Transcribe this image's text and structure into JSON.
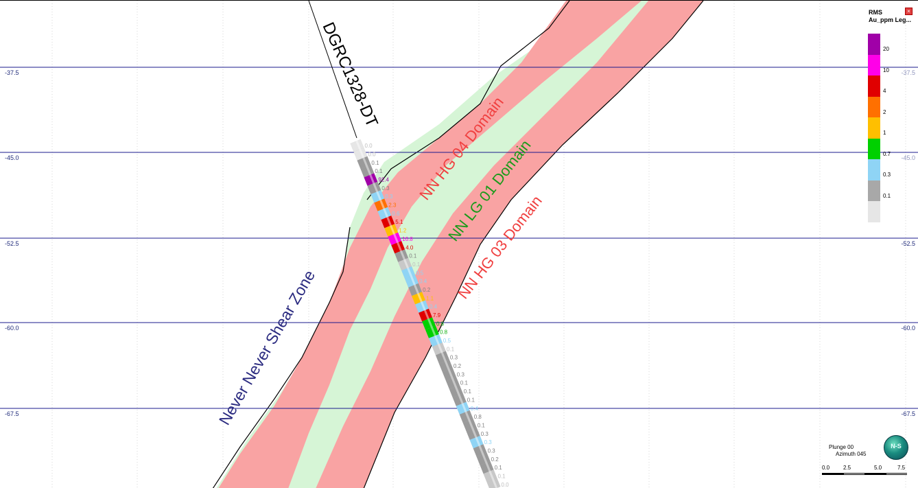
{
  "elevation_labels": {
    "left": [
      "-37.5",
      "-45.0",
      "-52.5",
      "-60.0",
      "-67.5"
    ],
    "right": [
      "-37.5",
      "-45.0",
      "-52.5",
      "-60.0",
      "-67.5"
    ]
  },
  "annotations": {
    "drillhole": "DGRC1328-DT",
    "shear_zone": "Never Never Shear Zone",
    "hg04": "NN HG 04 Domain",
    "lg01": "NN LG 01 Domain",
    "hg03": "NN HG 03 Domain"
  },
  "assays": [
    {
      "v": "0.0",
      "c": "#e6e6e6"
    },
    {
      "v": "0.0",
      "c": "#e6e6e6"
    },
    {
      "v": "0.1",
      "c": "#9a9a9a"
    },
    {
      "v": "0.1",
      "c": "#9a9a9a"
    },
    {
      "v": "92.4",
      "c": "#a000a8"
    },
    {
      "v": "0.3",
      "c": "#9a9a9a"
    },
    {
      "v": "0.3",
      "c": "#8fd4f5"
    },
    {
      "v": "2.3",
      "c": "#ff7000"
    },
    {
      "v": "0.6",
      "c": "#8fd4f5"
    },
    {
      "v": "5.1",
      "c": "#e00000"
    },
    {
      "v": "1.2",
      "c": "#ffbf00"
    },
    {
      "v": "16.8",
      "c": "#ff00e8"
    },
    {
      "v": "4.0",
      "c": "#e00000"
    },
    {
      "v": "0.1",
      "c": "#9a9a9a"
    },
    {
      "v": "0.1",
      "c": "#c8c8c8"
    },
    {
      "v": "0.5",
      "c": "#8fd4f5"
    },
    {
      "v": "0.4",
      "c": "#8fd4f5"
    },
    {
      "v": "0.2",
      "c": "#9a9a9a"
    },
    {
      "v": "1.1",
      "c": "#ffbf00"
    },
    {
      "v": "0.4",
      "c": "#8fd4f5"
    },
    {
      "v": "7.9",
      "c": "#e00000"
    },
    {
      "v": "0.8",
      "c": "#00d000"
    },
    {
      "v": "0.8",
      "c": "#00d000"
    },
    {
      "v": "0.5",
      "c": "#8fd4f5"
    },
    {
      "v": "0.1",
      "c": "#c8c8c8"
    },
    {
      "v": "0.3",
      "c": "#9a9a9a"
    },
    {
      "v": "0.2",
      "c": "#9a9a9a"
    },
    {
      "v": "0.3",
      "c": "#9a9a9a"
    },
    {
      "v": "0.1",
      "c": "#9a9a9a"
    },
    {
      "v": "0.1",
      "c": "#9a9a9a"
    },
    {
      "v": "0.1",
      "c": "#9a9a9a"
    },
    {
      "v": "0.4",
      "c": "#8fd4f5"
    },
    {
      "v": "0.8",
      "c": "#9a9a9a"
    },
    {
      "v": "0.1",
      "c": "#9a9a9a"
    },
    {
      "v": "0.3",
      "c": "#9a9a9a"
    },
    {
      "v": "0.3",
      "c": "#8fd4f5"
    },
    {
      "v": "0.3",
      "c": "#9a9a9a"
    },
    {
      "v": "0.2",
      "c": "#9a9a9a"
    },
    {
      "v": "0.1",
      "c": "#9a9a9a"
    },
    {
      "v": "0.1",
      "c": "#c8c8c8"
    },
    {
      "v": "0.0",
      "c": "#c8c8c8"
    }
  ],
  "legend": {
    "title": "RMS",
    "subtitle": "Au_ppm Leg...",
    "close_glyph": "×",
    "entries": [
      {
        "label": "20",
        "color": "#a000a8"
      },
      {
        "label": "10",
        "color": "#ff00e8"
      },
      {
        "label": "4",
        "color": "#e00000"
      },
      {
        "label": "2",
        "color": "#ff7000"
      },
      {
        "label": "1",
        "color": "#ffbf00"
      },
      {
        "label": "0.7",
        "color": "#00d000"
      },
      {
        "label": "0.3",
        "color": "#8fd4f5"
      },
      {
        "label": "0.1",
        "color": "#a8a8a8"
      },
      {
        "label": "",
        "color": "#e6e6e6"
      }
    ]
  },
  "compass": {
    "plunge": "Plunge 00",
    "azimuth": "Azimuth 045",
    "globe_label": "N-S",
    "scale": [
      "0.0",
      "2.5",
      "5.0",
      "7.5"
    ]
  },
  "colors": {
    "hg_domain": "#f9a3a3",
    "lg_domain": "#d6f5d6",
    "grid_major": "#1a1a8c",
    "grid_minor": "#d0d0d0"
  }
}
